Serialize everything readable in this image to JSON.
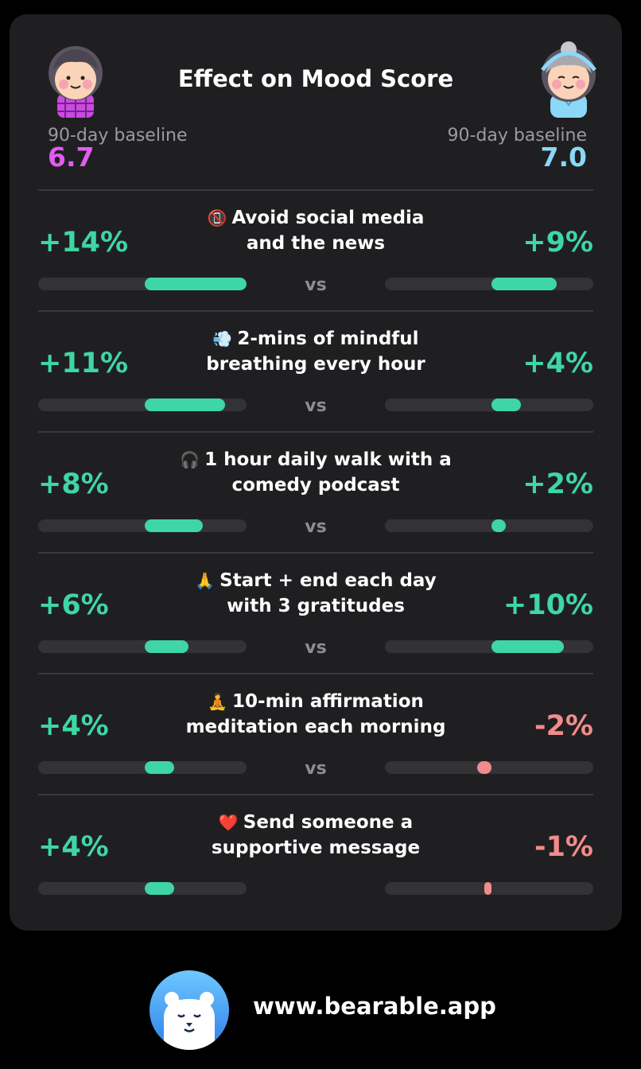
{
  "chart_data": {
    "type": "bar",
    "title": "Effect on Mood Score",
    "scale_max_pct": 14,
    "left_person": {
      "baseline_label": "90-day baseline",
      "baseline_value": "6.7",
      "color": "#e25cf0"
    },
    "right_person": {
      "baseline_label": "90-day baseline",
      "baseline_value": "7.0",
      "color": "#8bd8f8"
    },
    "vs_label": "vs",
    "positive_color": "#3ed6a4",
    "negative_color": "#f28b8b",
    "rows": [
      {
        "emoji": "📵",
        "line1": "Avoid social media",
        "line2": "and the news",
        "left_pct": "+14%",
        "left_value": 14,
        "right_pct": "+9%",
        "right_value": 9
      },
      {
        "emoji": "💨",
        "line1": "2-mins of mindful",
        "line2": "breathing every hour",
        "left_pct": "+11%",
        "left_value": 11,
        "right_pct": "+4%",
        "right_value": 4
      },
      {
        "emoji": "🎧",
        "line1": "1 hour daily walk with a",
        "line2": "comedy podcast",
        "left_pct": "+8%",
        "left_value": 8,
        "right_pct": "+2%",
        "right_value": 2
      },
      {
        "emoji": "🙏",
        "line1": "Start + end each day",
        "line2": "with 3 gratitudes",
        "left_pct": "+6%",
        "left_value": 6,
        "right_pct": "+10%",
        "right_value": 10
      },
      {
        "emoji": "🧘",
        "line1": "10-min affirmation",
        "line2": "meditation each morning",
        "left_pct": "+4%",
        "left_value": 4,
        "right_pct": "-2%",
        "right_value": -2
      },
      {
        "emoji": "❤️",
        "line1": "Send someone a",
        "line2": "supportive message",
        "left_pct": "+4%",
        "left_value": 4,
        "right_pct": "-1%",
        "right_value": -1
      }
    ]
  },
  "footer": {
    "url": "www.bearable.app",
    "logo_icon": "bear-logo-icon"
  }
}
